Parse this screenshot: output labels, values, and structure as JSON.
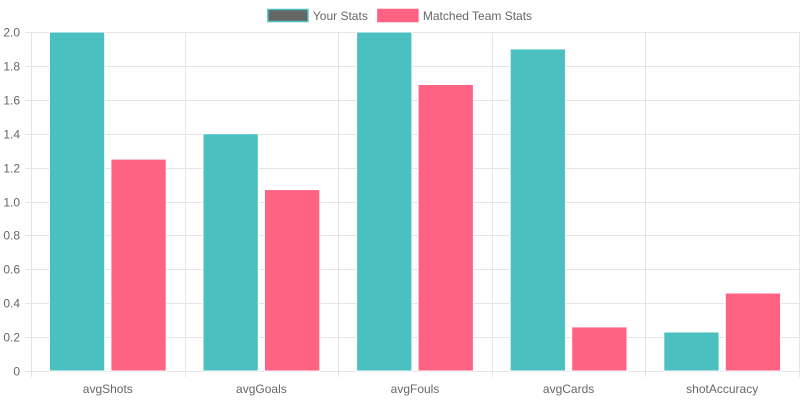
{
  "chart_data": {
    "type": "bar",
    "title": "",
    "xlabel": "",
    "ylabel": "",
    "categories": [
      "avgShots",
      "avgGoals",
      "avgFouls",
      "avgCards",
      "shotAccuracy"
    ],
    "series": [
      {
        "name": "Your Stats",
        "values": [
          2.0,
          1.4,
          2.0,
          1.9,
          0.23
        ],
        "color": "#4bc0c0",
        "legend_swatch": "#666666"
      },
      {
        "name": "Matched Team Stats",
        "values": [
          1.25,
          1.07,
          1.69,
          0.26,
          0.46
        ],
        "color": "#ff6384",
        "legend_swatch": "#ff6384"
      }
    ],
    "ylim": [
      0,
      2.0
    ],
    "yticks": [
      "0",
      "0.2",
      "0.4",
      "0.6",
      "0.8",
      "1.0",
      "1.2",
      "1.4",
      "1.6",
      "1.8",
      "2.0"
    ],
    "grid": true,
    "legend_position": "top-center"
  },
  "colors": {
    "grid": "#e5e5e5",
    "text": "#666666"
  }
}
